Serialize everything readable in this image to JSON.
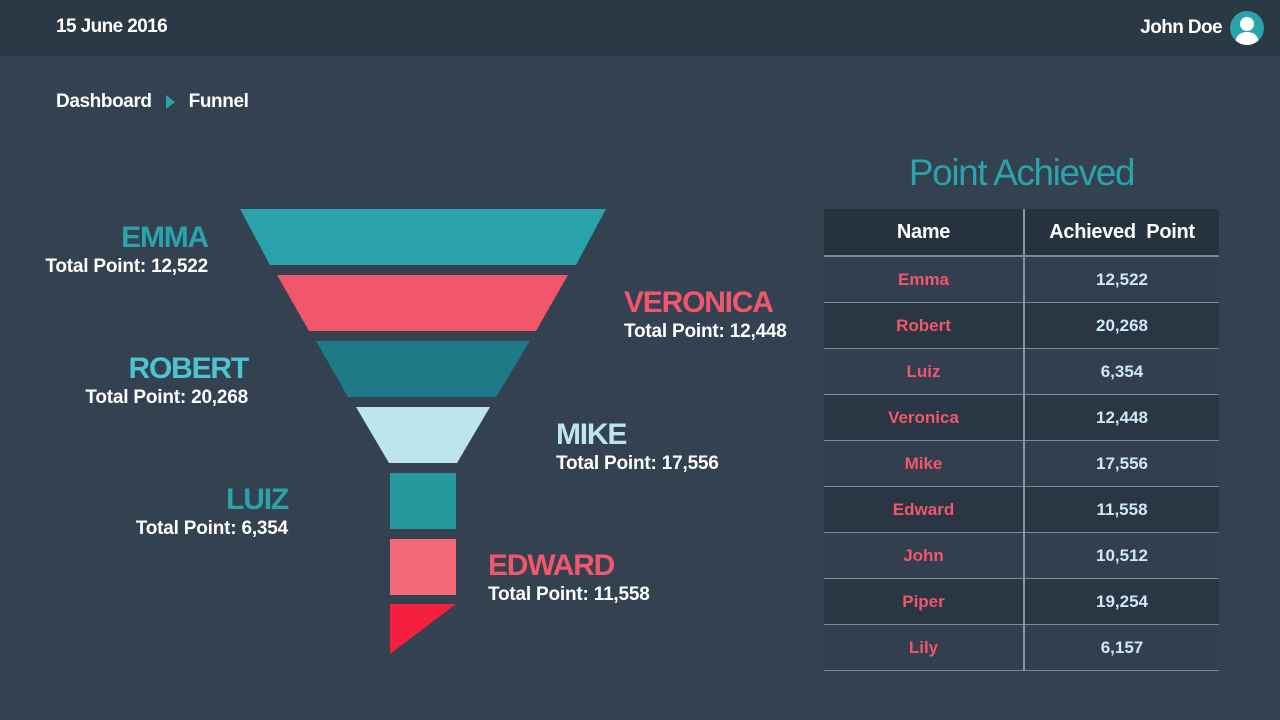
{
  "header": {
    "date": "15 June 2016",
    "user_name": "John Doe",
    "avatar_icon": "user-avatar-icon"
  },
  "breadcrumb": {
    "items": [
      "Dashboard",
      "Funnel"
    ],
    "separator_icon": "triangle-right-icon",
    "separator_color": "#2aa3aa"
  },
  "funnel": {
    "stages": [
      {
        "name": "EMMA",
        "points_text": "Total Point: 12,522",
        "color": "#2aa3aa",
        "label_color": "#2aa3aa"
      },
      {
        "name": "VERONICA",
        "points_text": "Total Point: 12,448",
        "color": "#f0566c",
        "label_color": "#f0566c"
      },
      {
        "name": "ROBERT",
        "points_text": "Total Point: 20,268",
        "color": "#1f7a88",
        "label_color": "#4fc3d0"
      },
      {
        "name": "MIKE",
        "points_text": "Total Point: 17,556",
        "color": "#bde5ee",
        "label_color": "#bde5ee"
      },
      {
        "name": "LUIZ",
        "points_text": "Total Point: 6,354",
        "color": "#26999f",
        "label_color": "#2aa3aa"
      },
      {
        "name": "EDWARD",
        "points_text": "Total Point: 11,558",
        "color": "#f5687a",
        "label_color": "#f0566c"
      },
      {
        "name": "",
        "points_text": "",
        "color": "#f5203f",
        "label_color": ""
      }
    ]
  },
  "table": {
    "title": "Point Achieved",
    "columns": [
      "Name",
      "Achieved  Point"
    ],
    "rows": [
      {
        "name": "Emma",
        "value": "12,522"
      },
      {
        "name": "Robert",
        "value": "20,268"
      },
      {
        "name": "Luiz",
        "value": "6,354"
      },
      {
        "name": "Veronica",
        "value": "12,448"
      },
      {
        "name": "Mike",
        "value": "17,556"
      },
      {
        "name": "Edward",
        "value": "11,558"
      },
      {
        "name": "John",
        "value": "10,512"
      },
      {
        "name": "Piper",
        "value": "19,254"
      },
      {
        "name": "Lily",
        "value": "6,157"
      }
    ],
    "name_color": "#f0566c",
    "value_color": "#cde9f3"
  }
}
